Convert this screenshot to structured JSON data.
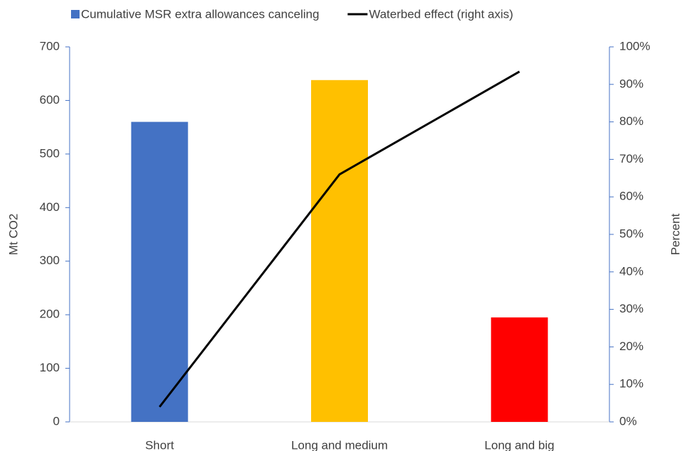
{
  "chart_data": {
    "type": "bar",
    "y_label": "Mt CO2",
    "y2_label": "Percent",
    "categories": [
      "Short",
      "Long and medium",
      "Long and big"
    ],
    "series": [
      {
        "name": "Cumulative MSR extra allowances canceling",
        "type": "bar",
        "color": "#4472c4",
        "colors": [
          "#4472c4",
          "#ffc000",
          "#ff0000"
        ],
        "values": [
          560,
          638,
          195
        ]
      },
      {
        "name": "Waterbed effect (right axis)",
        "type": "line",
        "axis": "y2",
        "color": "#000000",
        "values": [
          4,
          66,
          93.4
        ]
      }
    ],
    "ylim": [
      0,
      700
    ],
    "yticks": [
      0,
      100,
      200,
      300,
      400,
      500,
      600,
      700
    ],
    "y2lim": [
      0,
      100
    ],
    "y2ticks": [
      {
        "value": 0,
        "label": "0%"
      },
      {
        "value": 10,
        "label": "10%"
      },
      {
        "value": 20,
        "label": "20%"
      },
      {
        "value": 30,
        "label": "30%"
      },
      {
        "value": 40,
        "label": "40%"
      },
      {
        "value": 50,
        "label": "50%"
      },
      {
        "value": 60,
        "label": "60%"
      },
      {
        "value": 70,
        "label": "70%"
      },
      {
        "value": 80,
        "label": "80%"
      },
      {
        "value": 90,
        "label": "90%"
      },
      {
        "value": 100,
        "label": "100%"
      }
    ],
    "axis_color": "#4472c4"
  }
}
